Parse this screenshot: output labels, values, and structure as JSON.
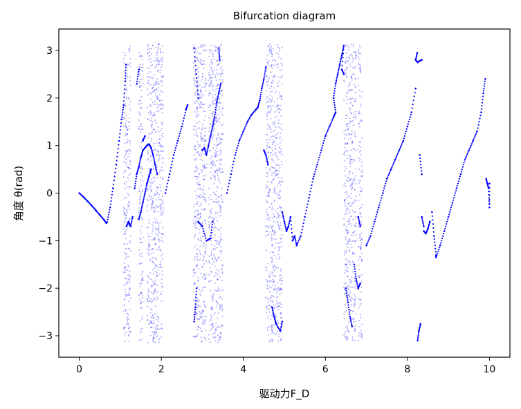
{
  "chart_data": {
    "type": "scatter",
    "title": "Bifurcation diagram",
    "xlabel": "驱动力F_D",
    "ylabel": "角度 θ(rad)",
    "xlim": [
      -0.5,
      10.5
    ],
    "ylim": [
      -3.45,
      3.45
    ],
    "x_ticks": [
      0,
      2,
      4,
      6,
      8,
      10
    ],
    "x_tick_labels": [
      "0",
      "2",
      "4",
      "6",
      "8",
      "10"
    ],
    "y_ticks": [
      3,
      2,
      1,
      0,
      -1,
      -2,
      -3
    ],
    "y_tick_labels": [
      "3",
      "2",
      "1",
      "0",
      "−1",
      "−2",
      "−3"
    ],
    "grid": false,
    "marker_color": "#0000ff",
    "series": [
      {
        "kind": "periodic",
        "points": [
          [
            0.0,
            0.0
          ],
          [
            0.1,
            -0.08
          ],
          [
            0.2,
            -0.17
          ],
          [
            0.3,
            -0.26
          ],
          [
            0.4,
            -0.36
          ],
          [
            0.5,
            -0.46
          ],
          [
            0.6,
            -0.56
          ],
          [
            0.66,
            -0.63
          ],
          [
            0.68,
            -0.61
          ],
          [
            0.75,
            -0.3
          ],
          [
            0.82,
            0.1
          ],
          [
            0.9,
            0.6
          ],
          [
            0.97,
            1.1
          ],
          [
            1.03,
            1.55
          ],
          [
            1.08,
            1.85
          ],
          [
            1.12,
            2.35
          ],
          [
            1.14,
            2.7
          ],
          [
            1.15,
            -0.7
          ],
          [
            1.2,
            -0.6
          ],
          [
            1.25,
            -0.7
          ],
          [
            1.3,
            -0.5
          ],
          [
            1.35,
            0.1
          ],
          [
            1.4,
            0.4
          ],
          [
            1.45,
            0.55
          ],
          [
            1.5,
            0.75
          ],
          [
            1.55,
            0.9
          ],
          [
            1.6,
            0.95
          ],
          [
            1.65,
            1.0
          ],
          [
            1.7,
            1.03
          ],
          [
            1.75,
            0.95
          ],
          [
            1.8,
            0.8
          ],
          [
            1.85,
            0.6
          ],
          [
            1.9,
            0.4
          ],
          [
            1.45,
            -0.55
          ],
          [
            1.5,
            -0.4
          ],
          [
            1.55,
            -0.2
          ],
          [
            1.6,
            0.0
          ],
          [
            1.65,
            0.2
          ],
          [
            1.7,
            0.35
          ],
          [
            1.75,
            0.5
          ],
          [
            1.4,
            2.3
          ],
          [
            1.45,
            2.6
          ],
          [
            1.55,
            1.1
          ],
          [
            1.6,
            1.2
          ],
          [
            2.1,
            0.0
          ],
          [
            2.2,
            0.4
          ],
          [
            2.3,
            0.8
          ],
          [
            2.4,
            1.1
          ],
          [
            2.5,
            1.4
          ],
          [
            2.6,
            1.75
          ],
          [
            2.64,
            1.85
          ],
          [
            2.8,
            -2.7
          ],
          [
            2.83,
            -2.4
          ],
          [
            2.86,
            -2.0
          ],
          [
            2.8,
            3.05
          ],
          [
            2.85,
            2.5
          ],
          [
            2.9,
            2.0
          ],
          [
            2.9,
            -0.6
          ],
          [
            3.0,
            -0.7
          ],
          [
            3.1,
            -1.0
          ],
          [
            3.2,
            -0.95
          ],
          [
            3.25,
            -0.6
          ],
          [
            3.0,
            0.9
          ],
          [
            3.05,
            0.95
          ],
          [
            3.1,
            0.8
          ],
          [
            3.15,
            1.0
          ],
          [
            3.2,
            1.2
          ],
          [
            3.25,
            1.4
          ],
          [
            3.3,
            1.6
          ],
          [
            3.35,
            1.9
          ],
          [
            3.4,
            2.1
          ],
          [
            3.45,
            2.3
          ],
          [
            3.4,
            3.05
          ],
          [
            3.42,
            2.8
          ],
          [
            3.6,
            0.0
          ],
          [
            3.7,
            0.4
          ],
          [
            3.8,
            0.8
          ],
          [
            3.9,
            1.1
          ],
          [
            4.0,
            1.3
          ],
          [
            4.1,
            1.5
          ],
          [
            4.2,
            1.65
          ],
          [
            4.3,
            1.75
          ],
          [
            4.35,
            1.8
          ],
          [
            4.4,
            1.95
          ],
          [
            4.45,
            2.2
          ],
          [
            4.5,
            2.4
          ],
          [
            4.55,
            2.65
          ],
          [
            4.5,
            0.9
          ],
          [
            4.55,
            0.8
          ],
          [
            4.6,
            0.6
          ],
          [
            4.7,
            -2.4
          ],
          [
            4.75,
            -2.6
          ],
          [
            4.8,
            -2.75
          ],
          [
            4.9,
            -2.9
          ],
          [
            4.95,
            -2.7
          ],
          [
            4.95,
            -0.4
          ],
          [
            5.0,
            -0.6
          ],
          [
            5.05,
            -0.8
          ],
          [
            5.1,
            -0.7
          ],
          [
            5.15,
            -0.5
          ],
          [
            5.2,
            -1.0
          ],
          [
            5.25,
            -0.9
          ],
          [
            5.3,
            -1.1
          ],
          [
            5.4,
            -0.9
          ],
          [
            5.5,
            -0.5
          ],
          [
            5.6,
            -0.1
          ],
          [
            5.7,
            0.3
          ],
          [
            5.8,
            0.6
          ],
          [
            5.9,
            0.9
          ],
          [
            6.0,
            1.2
          ],
          [
            6.1,
            1.4
          ],
          [
            6.2,
            1.6
          ],
          [
            6.25,
            1.7
          ],
          [
            6.2,
            2.0
          ],
          [
            6.25,
            2.3
          ],
          [
            6.3,
            2.5
          ],
          [
            6.35,
            2.7
          ],
          [
            6.4,
            2.9
          ],
          [
            6.45,
            3.1
          ],
          [
            6.4,
            2.6
          ],
          [
            6.45,
            2.5
          ],
          [
            6.5,
            -2.0
          ],
          [
            6.55,
            -2.3
          ],
          [
            6.6,
            -2.6
          ],
          [
            6.65,
            -2.8
          ],
          [
            6.7,
            -1.5
          ],
          [
            6.75,
            -1.8
          ],
          [
            6.8,
            -2.0
          ],
          [
            6.85,
            -1.9
          ],
          [
            6.8,
            -0.5
          ],
          [
            6.85,
            -0.7
          ],
          [
            7.0,
            -1.1
          ],
          [
            7.1,
            -0.9
          ],
          [
            7.2,
            -0.6
          ],
          [
            7.3,
            -0.3
          ],
          [
            7.4,
            0.0
          ],
          [
            7.5,
            0.3
          ],
          [
            7.6,
            0.5
          ],
          [
            7.7,
            0.7
          ],
          [
            7.8,
            0.9
          ],
          [
            7.9,
            1.1
          ],
          [
            8.0,
            1.4
          ],
          [
            8.1,
            1.7
          ],
          [
            8.2,
            2.2
          ],
          [
            8.24,
            2.95
          ],
          [
            8.2,
            2.8
          ],
          [
            8.25,
            2.75
          ],
          [
            8.3,
            2.78
          ],
          [
            8.35,
            2.8
          ],
          [
            8.25,
            -3.1
          ],
          [
            8.28,
            -2.9
          ],
          [
            8.32,
            -2.75
          ],
          [
            8.3,
            0.8
          ],
          [
            8.35,
            0.4
          ],
          [
            8.4,
            -0.8
          ],
          [
            8.45,
            -0.85
          ],
          [
            8.5,
            -0.75
          ],
          [
            8.55,
            -0.6
          ],
          [
            8.35,
            -0.5
          ],
          [
            8.4,
            -0.7
          ],
          [
            8.6,
            -0.4
          ],
          [
            8.65,
            -0.9
          ],
          [
            8.7,
            -1.3
          ],
          [
            8.7,
            -1.35
          ],
          [
            8.8,
            -1.1
          ],
          [
            8.9,
            -0.8
          ],
          [
            9.0,
            -0.5
          ],
          [
            9.1,
            -0.2
          ],
          [
            9.2,
            0.1
          ],
          [
            9.3,
            0.4
          ],
          [
            9.4,
            0.7
          ],
          [
            9.5,
            0.9
          ],
          [
            9.6,
            1.1
          ],
          [
            9.7,
            1.3
          ],
          [
            9.8,
            1.7
          ],
          [
            9.85,
            2.1
          ],
          [
            9.9,
            2.4
          ],
          [
            9.92,
            0.3
          ],
          [
            9.95,
            0.2
          ],
          [
            9.98,
            0.1
          ],
          [
            10.0,
            -0.3
          ],
          [
            10.0,
            0.2
          ]
        ]
      },
      {
        "kind": "chaotic-band",
        "x_ranges": [
          [
            1.08,
            1.25
          ],
          [
            1.45,
            1.55
          ],
          [
            1.65,
            2.05
          ],
          [
            2.78,
            3.1
          ],
          [
            3.15,
            3.5
          ],
          [
            4.55,
            4.95
          ],
          [
            6.45,
            6.75
          ],
          [
            6.8,
            6.9
          ]
        ],
        "y_range": [
          -3.14,
          3.14
        ]
      }
    ]
  }
}
